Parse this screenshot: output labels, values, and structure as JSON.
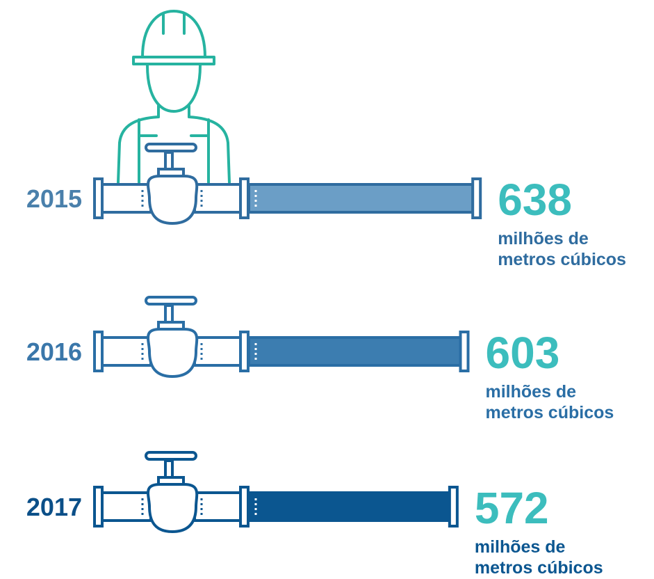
{
  "chart_data": {
    "type": "bar",
    "categories": [
      "2015",
      "2016",
      "2017"
    ],
    "values": [
      638,
      603,
      572
    ],
    "unit": [
      "milhões de",
      "metros cúbicos"
    ],
    "colors": [
      "#6b9ec6",
      "#3c7db0",
      "#0b5690"
    ],
    "outline_colors": [
      "#2f6c9f",
      "#2a6ea5",
      "#0b5690"
    ],
    "label_colors": [
      "#4a80ab",
      "#3a77aa",
      "#0b4f88"
    ],
    "value_color": "#3cbdbd",
    "icon_color": "#26b3a0"
  }
}
